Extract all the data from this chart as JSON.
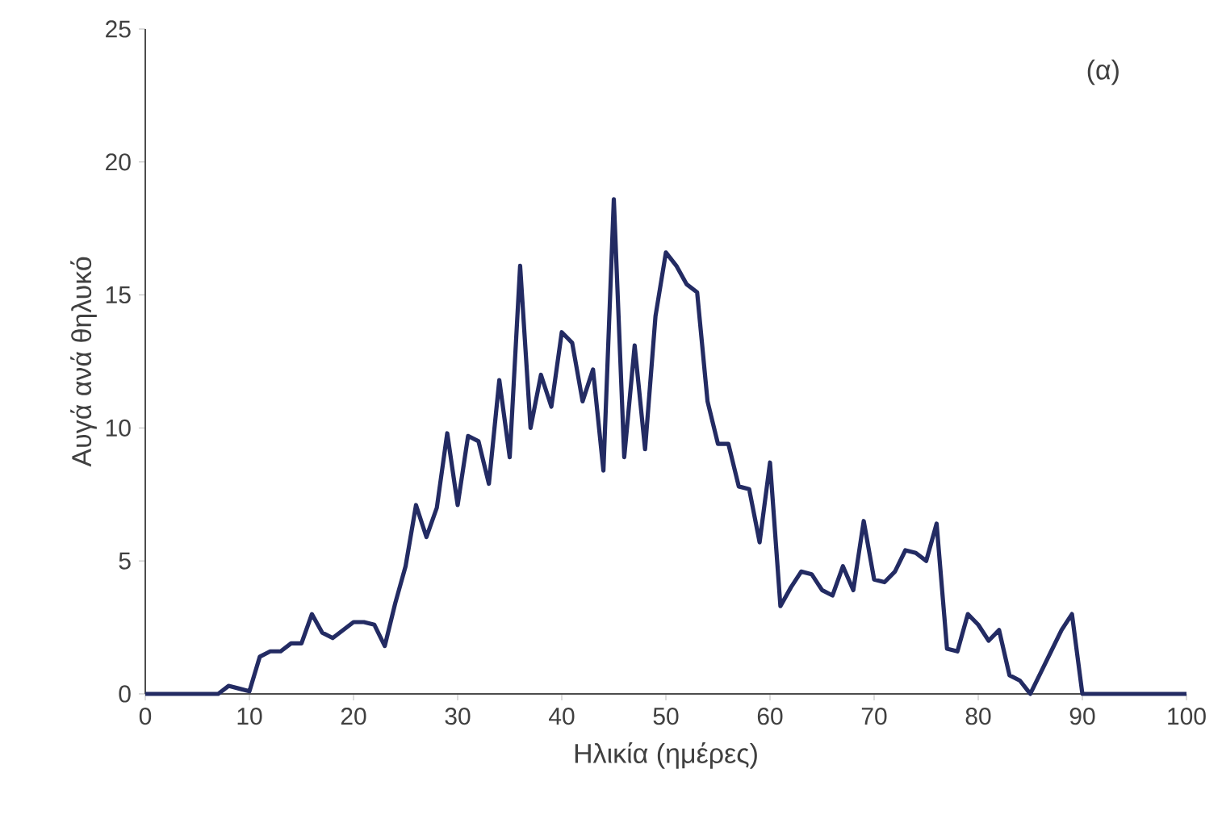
{
  "chart_data": {
    "type": "line",
    "xlabel": "Ηλικία (ημέρες)",
    "ylabel": "Αυγά ανά θηλυκό",
    "annotations": [
      "(α)"
    ],
    "x": [
      0,
      7,
      8,
      9,
      10,
      11,
      12,
      13,
      14,
      15,
      16,
      17,
      18,
      19,
      20,
      21,
      22,
      23,
      24,
      25,
      26,
      27,
      28,
      29,
      30,
      31,
      32,
      33,
      34,
      35,
      36,
      37,
      38,
      39,
      40,
      41,
      42,
      43,
      44,
      45,
      46,
      47,
      48,
      49,
      50,
      51,
      52,
      53,
      54,
      55,
      56,
      57,
      58,
      59,
      60,
      61,
      62,
      63,
      64,
      65,
      66,
      67,
      68,
      69,
      70,
      71,
      72,
      73,
      74,
      75,
      76,
      77,
      78,
      79,
      80,
      81,
      82,
      83,
      84,
      85,
      86,
      87,
      88,
      89,
      90,
      100
    ],
    "series": [
      {
        "color": "#232b63",
        "values": [
          0,
          0,
          0.3,
          0.2,
          0.1,
          1.4,
          1.6,
          1.6,
          1.9,
          1.9,
          3.0,
          2.3,
          2.1,
          2.4,
          2.7,
          2.7,
          2.6,
          1.8,
          3.4,
          4.8,
          7.1,
          5.9,
          7.0,
          9.8,
          7.1,
          9.7,
          9.5,
          7.9,
          11.8,
          8.9,
          16.1,
          10.0,
          12.0,
          10.8,
          13.6,
          13.2,
          11.0,
          12.2,
          8.4,
          18.6,
          8.9,
          13.1,
          9.2,
          14.2,
          16.6,
          16.1,
          15.4,
          15.1,
          11.0,
          9.4,
          9.4,
          7.8,
          7.7,
          5.7,
          8.7,
          3.3,
          4.0,
          4.6,
          4.5,
          3.9,
          3.7,
          4.8,
          3.9,
          6.5,
          4.3,
          4.2,
          4.6,
          5.4,
          5.3,
          5.0,
          6.4,
          1.7,
          1.6,
          3.0,
          2.6,
          2.0,
          2.4,
          0.7,
          0.5,
          0.0,
          0.8,
          1.6,
          2.4,
          3.0,
          0,
          0
        ]
      }
    ],
    "xlim": [
      0,
      100
    ],
    "xticks": [
      0,
      10,
      20,
      30,
      40,
      50,
      60,
      70,
      80,
      90,
      100
    ],
    "ylim": [
      0,
      25
    ],
    "yticks": [
      0,
      5,
      10,
      15,
      20,
      25
    ],
    "grid": false,
    "marker": "none",
    "line_style": "solid"
  }
}
